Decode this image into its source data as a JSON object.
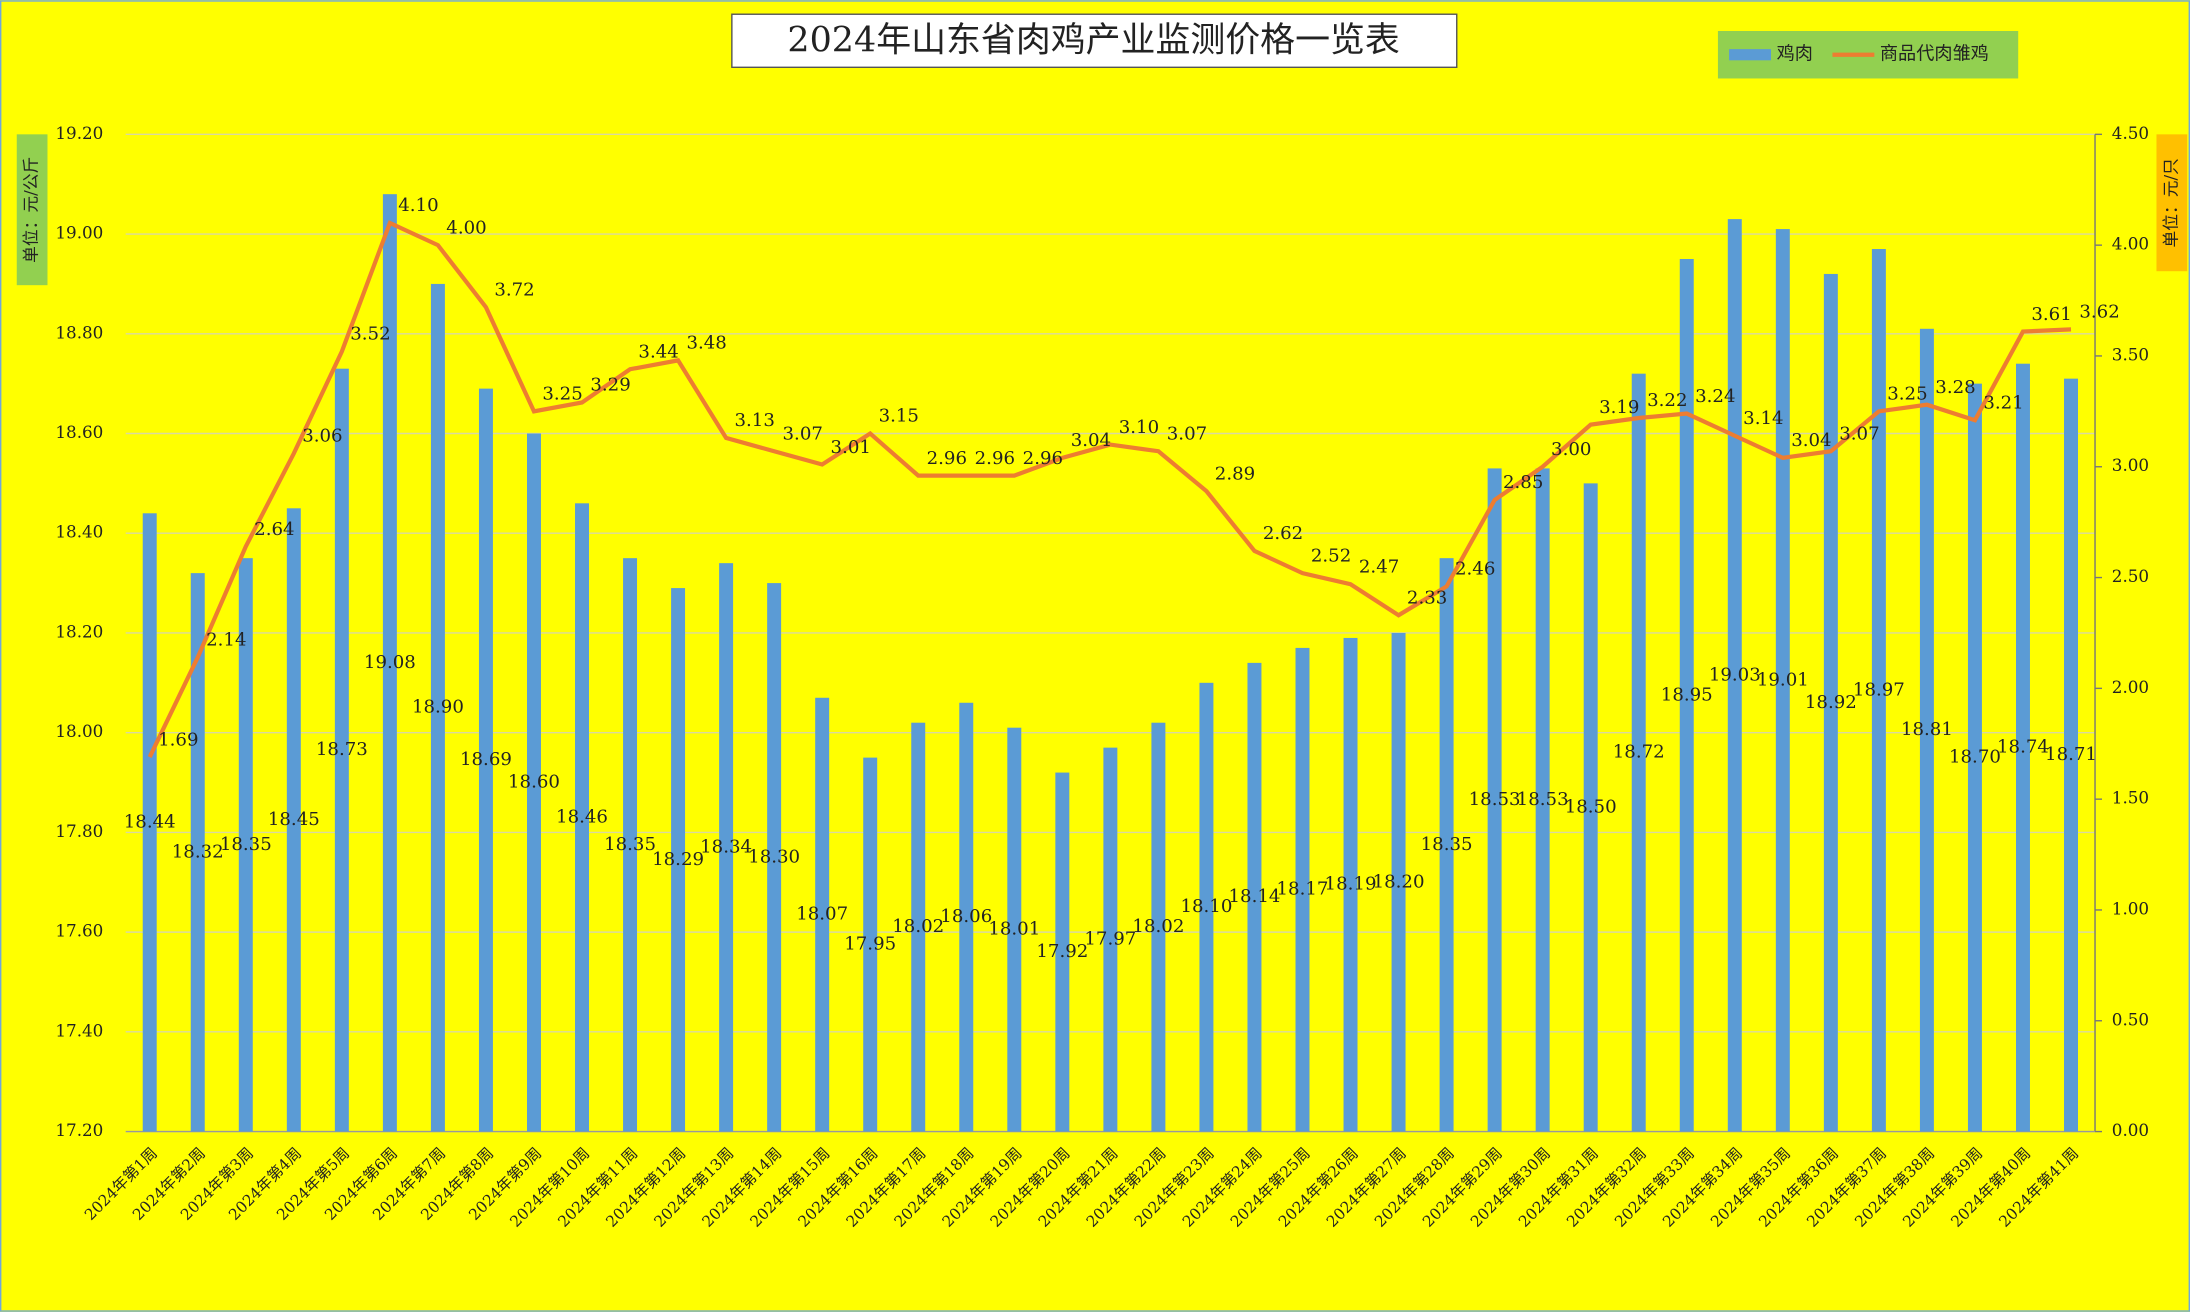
{
  "chart_data": {
    "type": "bar",
    "title": "2024年山东省肉鸡产业监测价格一览表",
    "y_label": "单位：元/公斤",
    "y2_label": "单位：元/只",
    "categories": [
      "2024年第1周",
      "2024年第2周",
      "2024年第3周",
      "2024年第4周",
      "2024年第5周",
      "2024年第6周",
      "2024年第7周",
      "2024年第8周",
      "2024年第9周",
      "2024年第10周",
      "2024年第11周",
      "2024年第12周",
      "2024年第13周",
      "2024年第14周",
      "2024年第15周",
      "2024年第16周",
      "2024年第17周",
      "2024年第18周",
      "2024年第19周",
      "2024年第20周",
      "2024年第21周",
      "2024年第22周",
      "2024年第23周",
      "2024年第24周",
      "2024年第25周",
      "2024年第26周",
      "2024年第27周",
      "2024年第28周",
      "2024年第29周",
      "2024年第30周",
      "2024年第31周",
      "2024年第32周",
      "2024年第33周",
      "2024年第34周",
      "2024年第35周",
      "2024年第36周",
      "2024年第37周",
      "2024年第38周",
      "2024年第39周",
      "2024年第40周",
      "2024年第41周"
    ],
    "series": [
      {
        "name": "鸡肉",
        "type": "bar",
        "color": "#5b9bd5",
        "values": [
          18.44,
          18.32,
          18.35,
          18.45,
          18.73,
          19.08,
          18.9,
          18.69,
          18.6,
          18.46,
          18.35,
          18.29,
          18.34,
          18.3,
          18.07,
          17.95,
          18.02,
          18.06,
          18.01,
          17.92,
          17.97,
          18.02,
          18.1,
          18.14,
          18.17,
          18.19,
          18.2,
          18.35,
          18.53,
          18.53,
          18.5,
          18.72,
          18.95,
          19.03,
          19.01,
          18.92,
          18.97,
          18.81,
          18.7,
          18.74,
          18.71
        ],
        "value_labels": [
          "18.44",
          "18.32",
          "18.35",
          "18.45",
          "18.73",
          "19.08",
          "18.90",
          "18.69",
          "18.60",
          "18.46",
          "18.35",
          "18.29",
          "18.34",
          "18.30",
          "18.07",
          "17.95",
          "18.02",
          "18.06",
          "18.01",
          "17.92",
          "17.97",
          "18.02",
          "18.10",
          "18.14",
          "18.17",
          "18.19",
          "18.20",
          "18.35",
          "18.53",
          "18.53",
          "18.50",
          "18.72",
          "18.95",
          "19.03",
          "19.01",
          "18.92",
          "18.97",
          "18.81",
          "18.70",
          "18.74",
          "18.71"
        ]
      },
      {
        "name": "商品代肉雏鸡",
        "type": "line",
        "axis": "y2",
        "color": "#ed7d31",
        "values": [
          1.69,
          2.14,
          2.64,
          3.06,
          3.52,
          4.1,
          4.0,
          3.72,
          3.25,
          3.29,
          3.44,
          3.48,
          3.13,
          3.07,
          3.01,
          3.15,
          2.96,
          2.96,
          2.96,
          3.04,
          3.1,
          3.07,
          2.89,
          2.62,
          2.52,
          2.47,
          2.33,
          2.46,
          2.85,
          3.0,
          3.19,
          3.22,
          3.24,
          3.14,
          3.04,
          3.07,
          3.25,
          3.28,
          3.21,
          3.61,
          3.62
        ],
        "value_labels": [
          "1.69",
          "2.14",
          "2.64",
          "3.06",
          "3.52",
          "4.10",
          "4.00",
          "3.72",
          "3.25",
          "3.29",
          "3.44",
          "3.48",
          "3.13",
          "3.07",
          "3.01",
          "3.15",
          "2.96",
          "2.96",
          "2.96",
          "3.04",
          "3.10",
          "3.07",
          "2.89",
          "2.62",
          "2.52",
          "2.47",
          "2.33",
          "2.46",
          "2.85",
          "3.00",
          "3.19",
          "3.22",
          "3.24",
          "3.14",
          "3.04",
          "3.07",
          "3.25",
          "3.28",
          "3.21",
          "3.61",
          "3.62"
        ]
      }
    ],
    "ylim": [
      17.2,
      19.2
    ],
    "yticks": [
      {
        "value": 17.2,
        "label": "17.20"
      },
      {
        "value": 17.4,
        "label": "17.40"
      },
      {
        "value": 17.6,
        "label": "17.60"
      },
      {
        "value": 17.8,
        "label": "17.80"
      },
      {
        "value": 18.0,
        "label": "18.00"
      },
      {
        "value": 18.2,
        "label": "18.20"
      },
      {
        "value": 18.4,
        "label": "18.40"
      },
      {
        "value": 18.6,
        "label": "18.60"
      },
      {
        "value": 18.8,
        "label": "18.80"
      },
      {
        "value": 19.0,
        "label": "19.00"
      },
      {
        "value": 19.2,
        "label": "19.20"
      }
    ],
    "y2lim": [
      0,
      4.5
    ],
    "y2ticks": [
      {
        "value": 0,
        "label": "0.00"
      },
      {
        "value": 0.5,
        "label": "0.50"
      },
      {
        "value": 1.0,
        "label": "1.00"
      },
      {
        "value": 1.5,
        "label": "1.50"
      },
      {
        "value": 2.0,
        "label": "2.00"
      },
      {
        "value": 2.5,
        "label": "2.50"
      },
      {
        "value": 3.0,
        "label": "3.00"
      },
      {
        "value": 3.5,
        "label": "3.50"
      },
      {
        "value": 4.0,
        "label": "4.00"
      },
      {
        "value": 4.5,
        "label": "4.50"
      }
    ],
    "grid": true,
    "legend": "top-right"
  }
}
